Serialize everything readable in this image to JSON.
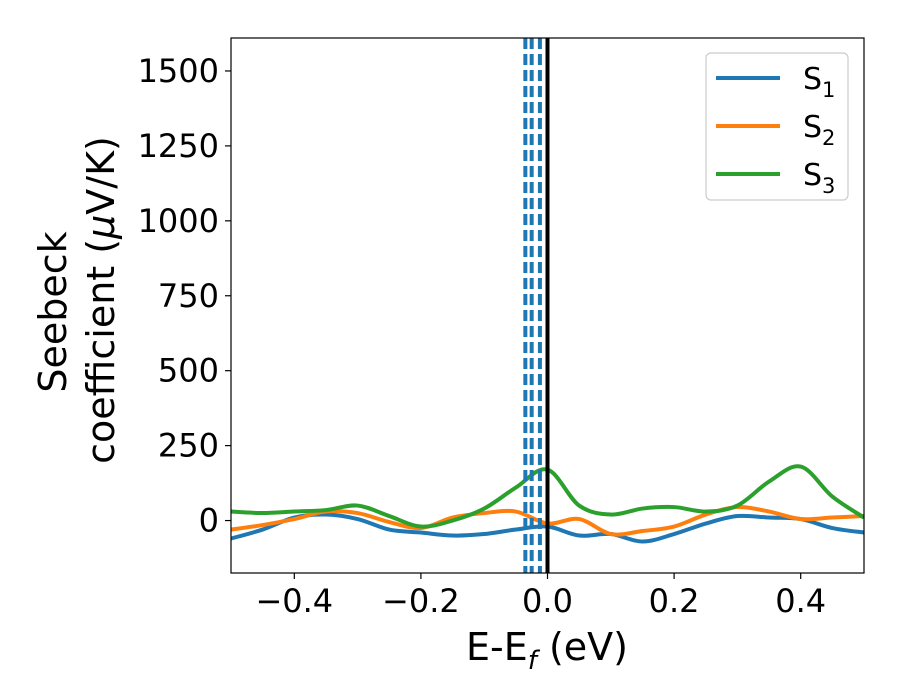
{
  "chart_data": {
    "type": "line",
    "xlabel": {
      "base": "E-E",
      "sub": "f",
      "tail": " (eV)"
    },
    "ylabel": {
      "line1": "Seebeck",
      "line2_pre": "coefficient  (",
      "line2_mu": "μ",
      "line2_post": "V/K)"
    },
    "xlim": [
      -0.5,
      0.5
    ],
    "ylim": [
      -175,
      1610
    ],
    "xticks": [
      -0.4,
      -0.2,
      0.0,
      0.2,
      0.4
    ],
    "xtick_labels": [
      "−0.4",
      "−0.2",
      "0.0",
      "0.2",
      "0.4"
    ],
    "yticks": [
      0,
      250,
      500,
      750,
      1000,
      1250,
      1500
    ],
    "ytick_labels": [
      "0",
      "250",
      "500",
      "750",
      "1000",
      "1250",
      "1500"
    ],
    "grid": false,
    "legend_position": "top-right",
    "series": [
      {
        "name": "S",
        "sub": "1",
        "color": "#1f77b4",
        "x": [
          -0.5,
          -0.45,
          -0.4,
          -0.35,
          -0.3,
          -0.25,
          -0.2,
          -0.15,
          -0.1,
          -0.05,
          0.0,
          0.05,
          0.1,
          0.15,
          0.2,
          0.25,
          0.3,
          0.35,
          0.4,
          0.45,
          0.5
        ],
        "y": [
          -60,
          -30,
          10,
          20,
          5,
          -30,
          -40,
          -50,
          -45,
          -30,
          -20,
          -50,
          -45,
          -70,
          -45,
          -10,
          15,
          10,
          5,
          -25,
          -40
        ]
      },
      {
        "name": "S",
        "sub": "2",
        "color": "#ff7f0e",
        "x": [
          -0.5,
          -0.45,
          -0.4,
          -0.35,
          -0.3,
          -0.25,
          -0.2,
          -0.15,
          -0.1,
          -0.05,
          0.0,
          0.05,
          0.1,
          0.15,
          0.2,
          0.25,
          0.3,
          0.35,
          0.4,
          0.45,
          0.5
        ],
        "y": [
          -30,
          -15,
          5,
          30,
          25,
          -5,
          -25,
          10,
          25,
          30,
          -10,
          5,
          -45,
          -35,
          -20,
          20,
          45,
          30,
          5,
          10,
          15
        ]
      },
      {
        "name": "S",
        "sub": "3",
        "color": "#2ca02c",
        "x": [
          -0.5,
          -0.45,
          -0.4,
          -0.35,
          -0.3,
          -0.25,
          -0.2,
          -0.15,
          -0.1,
          -0.05,
          0.0,
          0.05,
          0.1,
          0.15,
          0.2,
          0.25,
          0.3,
          0.35,
          0.4,
          0.45,
          0.5
        ],
        "y": [
          30,
          25,
          30,
          35,
          50,
          15,
          -20,
          0,
          40,
          110,
          170,
          50,
          20,
          40,
          45,
          30,
          50,
          130,
          180,
          80,
          10
        ]
      }
    ],
    "vlines": [
      {
        "x": -0.035,
        "style": "dashed",
        "color": "#1f77b4"
      },
      {
        "x": -0.025,
        "style": "dashed",
        "color": "#1f77b4"
      },
      {
        "x": -0.012,
        "style": "dashed",
        "color": "#1f77b4"
      },
      {
        "x": 0.0,
        "style": "solid",
        "color": "#000000"
      }
    ]
  }
}
